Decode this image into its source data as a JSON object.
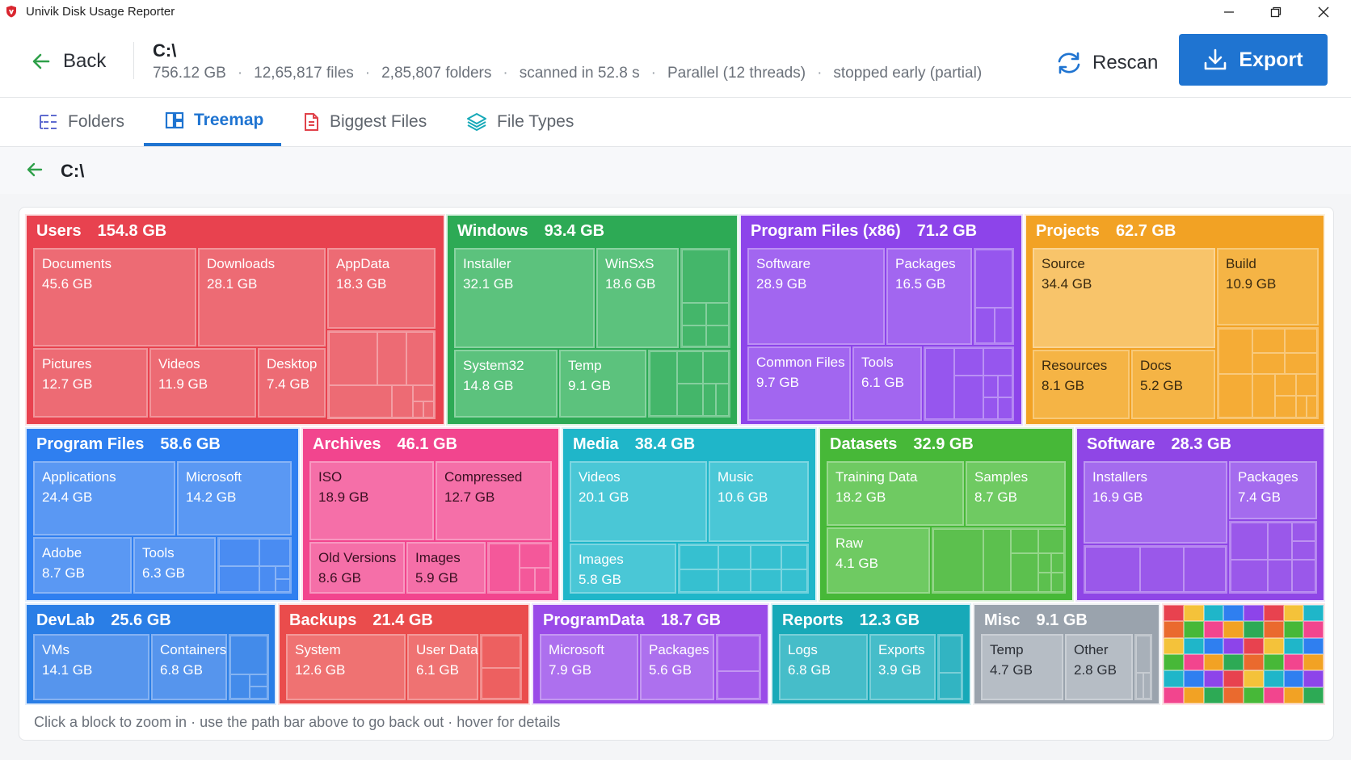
{
  "window": {
    "title": "Univik Disk Usage Reporter",
    "icon": "app-logo-icon"
  },
  "header": {
    "back_label": "Back",
    "path": "C:\\",
    "size": "756.12 GB",
    "files": "12,65,817 files",
    "folders": "2,85,807 folders",
    "scan_time": "scanned in 52.8 s",
    "mode": "Parallel (12 threads)",
    "status": "stopped early (partial)",
    "rescan_label": "Rescan",
    "export_label": "Export"
  },
  "tabs": [
    {
      "label": "Folders",
      "icon": "folders-list-icon"
    },
    {
      "label": "Treemap",
      "icon": "treemap-icon",
      "active": true
    },
    {
      "label": "Biggest Files",
      "icon": "document-icon"
    },
    {
      "label": "File Types",
      "icon": "layers-icon"
    }
  ],
  "breadcrumb": {
    "path": "C:\\"
  },
  "treemap": {
    "blocks": [
      {
        "name": "Users",
        "size": "154.8 GB",
        "color": "#e8424f",
        "children": [
          {
            "name": "Documents",
            "size": "45.6 GB"
          },
          {
            "name": "Downloads",
            "size": "28.1 GB"
          },
          {
            "name": "AppData",
            "size": "18.3 GB"
          },
          {
            "name": "Pictures",
            "size": "12.7 GB"
          },
          {
            "name": "Videos",
            "size": "11.9 GB"
          },
          {
            "name": "Desktop",
            "size": "7.4 GB"
          }
        ]
      },
      {
        "name": "Windows",
        "size": "93.4 GB",
        "color": "#2daa55",
        "children": [
          {
            "name": "Installer",
            "size": "32.1 GB"
          },
          {
            "name": "WinSxS",
            "size": "18.6 GB"
          },
          {
            "name": "System32",
            "size": "14.8 GB"
          },
          {
            "name": "Temp",
            "size": "9.1 GB"
          }
        ]
      },
      {
        "name": "Program Files (x86)",
        "size": "71.2 GB",
        "color": "#8d44ea",
        "children": [
          {
            "name": "Software",
            "size": "28.9 GB"
          },
          {
            "name": "Packages",
            "size": "16.5 GB"
          },
          {
            "name": "Common Files",
            "size": "9.7 GB"
          },
          {
            "name": "Tools",
            "size": "6.1 GB"
          }
        ]
      },
      {
        "name": "Projects",
        "size": "62.7 GB",
        "color": "#f2a224",
        "children": [
          {
            "name": "Source",
            "size": "34.4 GB"
          },
          {
            "name": "Build",
            "size": "10.9 GB"
          },
          {
            "name": "Resources",
            "size": "8.1 GB"
          },
          {
            "name": "Docs",
            "size": "5.2 GB"
          }
        ]
      },
      {
        "name": "Program Files",
        "size": "58.6 GB",
        "color": "#2f7ff0",
        "children": [
          {
            "name": "Applications",
            "size": "24.4 GB"
          },
          {
            "name": "Microsoft",
            "size": "14.2 GB"
          },
          {
            "name": "Adobe",
            "size": "8.7 GB"
          },
          {
            "name": "Tools",
            "size": "6.3 GB"
          }
        ]
      },
      {
        "name": "Archives",
        "size": "46.1 GB",
        "color": "#f2458e",
        "children": [
          {
            "name": "ISO",
            "size": "18.9 GB"
          },
          {
            "name": "Compressed",
            "size": "12.7 GB"
          },
          {
            "name": "Old Versions",
            "size": "8.6 GB"
          },
          {
            "name": "Images",
            "size": "5.9 GB"
          }
        ]
      },
      {
        "name": "Media",
        "size": "38.4 GB",
        "color": "#1fb6c9",
        "children": [
          {
            "name": "Videos",
            "size": "20.1 GB"
          },
          {
            "name": "Music",
            "size": "10.6 GB"
          },
          {
            "name": "Images",
            "size": "5.8 GB"
          }
        ]
      },
      {
        "name": "Datasets",
        "size": "32.9 GB",
        "color": "#47b838",
        "children": [
          {
            "name": "Training Data",
            "size": "18.2 GB"
          },
          {
            "name": "Samples",
            "size": "8.7 GB"
          },
          {
            "name": "Raw",
            "size": "4.1 GB"
          }
        ]
      },
      {
        "name": "Software",
        "size": "28.3 GB",
        "color": "#8f46e6",
        "children": [
          {
            "name": "Installers",
            "size": "16.9 GB"
          },
          {
            "name": "Packages",
            "size": "7.4 GB"
          }
        ]
      },
      {
        "name": "DevLab",
        "size": "25.6 GB",
        "color": "#2a7ee6",
        "children": [
          {
            "name": "VMs",
            "size": "14.1 GB"
          },
          {
            "name": "Containers",
            "size": "6.8 GB"
          }
        ]
      },
      {
        "name": "Backups",
        "size": "21.4 GB",
        "color": "#ea4c4c",
        "children": [
          {
            "name": "System",
            "size": "12.6 GB"
          },
          {
            "name": "User Data",
            "size": "6.1 GB"
          }
        ]
      },
      {
        "name": "ProgramData",
        "size": "18.7 GB",
        "color": "#9a4be8",
        "children": [
          {
            "name": "Microsoft",
            "size": "7.9 GB"
          },
          {
            "name": "Packages",
            "size": "5.6 GB"
          }
        ]
      },
      {
        "name": "Reports",
        "size": "12.3 GB",
        "color": "#17a9b8",
        "children": [
          {
            "name": "Logs",
            "size": "6.8 GB"
          },
          {
            "name": "Exports",
            "size": "3.9 GB"
          }
        ]
      },
      {
        "name": "Misc",
        "size": "9.1 GB",
        "color": "#9aa3ad",
        "children": [
          {
            "name": "Temp",
            "size": "4.7 GB"
          },
          {
            "name": "Other",
            "size": "2.8 GB"
          }
        ]
      }
    ]
  },
  "footer": {
    "hint": "Click a block to zoom in · use the path bar above to go back out · hover for details"
  }
}
